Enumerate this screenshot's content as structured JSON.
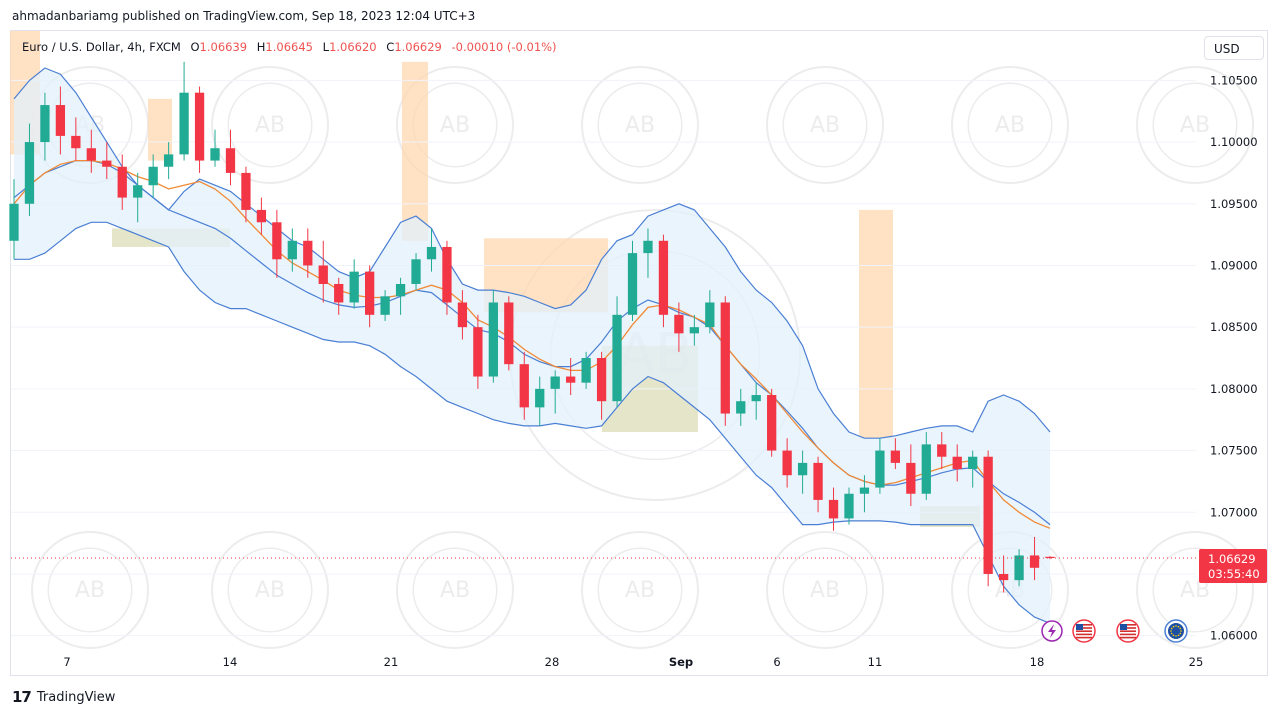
{
  "header": {
    "text": "ahmadanbariamg published on TradingView.com, Sep 18, 2023 12:04 UTC+3"
  },
  "legend": {
    "symbol": "Euro / U.S. Dollar, 4h, FXCM",
    "o_label": "O",
    "o": "1.06639",
    "h_label": "H",
    "h": "1.06645",
    "l_label": "L",
    "l": "1.06620",
    "c_label": "C",
    "c": "1.06629",
    "change": "-0.00010 (-0.01%)"
  },
  "currency_button": "USD",
  "price_tag": {
    "price": "1.06629",
    "countdown": "03:55:40"
  },
  "footer": {
    "brand": "TradingView"
  },
  "colors": {
    "up": "#22ab94",
    "down": "#f23645",
    "band": "#4a7fd4",
    "band_fill": "#e3f0fb",
    "ma": "#f08a36",
    "tag": "#f23645",
    "zone_orange": "#ffd7b0",
    "zone_olive": "#dcdcb8"
  },
  "event_icons": [
    "lightning-icon",
    "us-flag-icon",
    "us-flag-icon",
    "eu-flag-icon"
  ],
  "chart_data": {
    "type": "candlestick",
    "title": "Euro / U.S. Dollar, 4h, FXCM",
    "y_ticks": [
      "1.10500",
      "1.10000",
      "1.09500",
      "1.09000",
      "1.08500",
      "1.08000",
      "1.07500",
      "1.07000",
      "1.06500",
      "1.06000"
    ],
    "ylim": [
      1.059,
      1.109
    ],
    "x_ticks": [
      "7",
      "14",
      "21",
      "28",
      "Sep",
      "6",
      "11",
      "18",
      "25"
    ],
    "last_price": 1.06629,
    "indicators": [
      "Bollinger Bands (upper, basis, lower)",
      "Moving average"
    ],
    "ohlc": [
      [
        1.092,
        1.097,
        1.0905,
        1.095
      ],
      [
        1.095,
        1.1015,
        1.094,
        1.1
      ],
      [
        1.1,
        1.104,
        1.0985,
        1.103
      ],
      [
        1.103,
        1.1045,
        1.099,
        1.1005
      ],
      [
        1.1005,
        1.102,
        1.0985,
        1.0995
      ],
      [
        1.0995,
        1.101,
        1.0975,
        1.0985
      ],
      [
        1.0985,
        1.1,
        1.097,
        1.098
      ],
      [
        1.098,
        1.099,
        1.0945,
        1.0955
      ],
      [
        1.0955,
        1.0975,
        1.0935,
        1.0965
      ],
      [
        1.0965,
        1.099,
        1.0955,
        1.098
      ],
      [
        1.098,
        1.1,
        1.097,
        1.099
      ],
      [
        1.099,
        1.1065,
        1.0985,
        1.104
      ],
      [
        1.104,
        1.1045,
        1.0975,
        1.0985
      ],
      [
        1.0985,
        1.101,
        1.098,
        1.0995
      ],
      [
        1.0995,
        1.101,
        1.0965,
        1.0975
      ],
      [
        1.0975,
        1.098,
        1.0935,
        1.0945
      ],
      [
        1.0945,
        1.0955,
        1.0925,
        1.0935
      ],
      [
        1.0935,
        1.0945,
        1.089,
        1.0905
      ],
      [
        1.0905,
        1.093,
        1.0895,
        1.092
      ],
      [
        1.092,
        1.093,
        1.089,
        1.09
      ],
      [
        1.09,
        1.092,
        1.087,
        1.0885
      ],
      [
        1.0885,
        1.089,
        1.086,
        1.087
      ],
      [
        1.087,
        1.0905,
        1.0865,
        1.0895
      ],
      [
        1.0895,
        1.09,
        1.085,
        1.086
      ],
      [
        1.086,
        1.088,
        1.0855,
        1.0875
      ],
      [
        1.0875,
        1.089,
        1.086,
        1.0885
      ],
      [
        1.0885,
        1.091,
        1.088,
        1.0905
      ],
      [
        1.0905,
        1.093,
        1.0895,
        1.0915
      ],
      [
        1.0915,
        1.092,
        1.086,
        1.087
      ],
      [
        1.087,
        1.088,
        1.084,
        1.085
      ],
      [
        1.085,
        1.086,
        1.08,
        1.081
      ],
      [
        1.081,
        1.088,
        1.0805,
        1.087
      ],
      [
        1.087,
        1.0875,
        1.0815,
        1.082
      ],
      [
        1.082,
        1.083,
        1.0775,
        1.0785
      ],
      [
        1.0785,
        1.081,
        1.077,
        1.08
      ],
      [
        1.08,
        1.0815,
        1.078,
        1.081
      ],
      [
        1.081,
        1.0825,
        1.0795,
        1.0805
      ],
      [
        1.0805,
        1.083,
        1.08,
        1.0825
      ],
      [
        1.0825,
        1.083,
        1.0775,
        1.079
      ],
      [
        1.079,
        1.0875,
        1.0785,
        1.086
      ],
      [
        1.086,
        1.092,
        1.0855,
        1.091
      ],
      [
        1.091,
        1.093,
        1.089,
        1.092
      ],
      [
        1.092,
        1.0925,
        1.085,
        1.086
      ],
      [
        1.086,
        1.087,
        1.083,
        1.0845
      ],
      [
        1.0845,
        1.086,
        1.0835,
        1.085
      ],
      [
        1.085,
        1.088,
        1.0845,
        1.087
      ],
      [
        1.087,
        1.0875,
        1.077,
        1.078
      ],
      [
        1.078,
        1.08,
        1.077,
        1.079
      ],
      [
        1.079,
        1.0805,
        1.0775,
        1.0795
      ],
      [
        1.0795,
        1.08,
        1.0745,
        1.075
      ],
      [
        1.075,
        1.076,
        1.072,
        1.073
      ],
      [
        1.073,
        1.075,
        1.0715,
        1.074
      ],
      [
        1.074,
        1.0745,
        1.07,
        1.071
      ],
      [
        1.071,
        1.072,
        1.0685,
        1.0695
      ],
      [
        1.0695,
        1.072,
        1.069,
        1.0715
      ],
      [
        1.0715,
        1.073,
        1.07,
        1.072
      ],
      [
        1.072,
        1.076,
        1.0715,
        1.075
      ],
      [
        1.075,
        1.076,
        1.0735,
        1.074
      ],
      [
        1.074,
        1.0755,
        1.0705,
        1.0715
      ],
      [
        1.0715,
        1.0765,
        1.071,
        1.0755
      ],
      [
        1.0755,
        1.0765,
        1.0735,
        1.0745
      ],
      [
        1.0745,
        1.0755,
        1.0725,
        1.0735
      ],
      [
        1.0735,
        1.075,
        1.072,
        1.0745
      ],
      [
        1.0745,
        1.075,
        1.064,
        1.065
      ],
      [
        1.065,
        1.0665,
        1.0635,
        1.0645
      ],
      [
        1.0645,
        1.067,
        1.064,
        1.0665
      ],
      [
        1.0665,
        1.068,
        1.0645,
        1.0655
      ],
      [
        1.06639,
        1.06645,
        1.0662,
        1.06629
      ]
    ],
    "bollinger_upper": [
      1.1035,
      1.105,
      1.106,
      1.1055,
      1.104,
      1.102,
      1.1,
      1.098,
      1.0965,
      1.0955,
      1.0945,
      1.096,
      1.097,
      1.0965,
      1.096,
      1.095,
      1.094,
      1.093,
      1.092,
      1.0915,
      1.0905,
      1.0895,
      1.089,
      1.0895,
      1.0915,
      1.0935,
      1.094,
      1.093,
      1.0905,
      1.0885,
      1.088,
      1.088,
      1.0878,
      1.0875,
      1.087,
      1.0865,
      1.0868,
      1.088,
      1.0905,
      1.092,
      1.0925,
      1.094,
      1.0945,
      1.095,
      1.0945,
      1.093,
      1.0915,
      1.0895,
      1.088,
      1.087,
      1.0855,
      1.0835,
      1.08,
      1.078,
      1.0765,
      1.076,
      1.076,
      1.0762,
      1.0765,
      1.0768,
      1.077,
      1.077,
      1.0765,
      1.079,
      1.0795,
      1.079,
      1.078,
      1.0765
    ],
    "bollinger_basis": [
      1.0955,
      1.0965,
      1.0975,
      1.098,
      1.0985,
      1.0985,
      1.0982,
      1.0975,
      1.0965,
      1.0955,
      1.0945,
      1.094,
      1.0935,
      1.093,
      1.0922,
      1.0912,
      1.0902,
      1.0892,
      1.0885,
      1.0878,
      1.0872,
      1.0868,
      1.0866,
      1.0867,
      1.087,
      1.0875,
      1.088,
      1.0878,
      1.0868,
      1.0858,
      1.0848,
      1.0845,
      1.0838,
      1.0828,
      1.0822,
      1.0818,
      1.0818,
      1.0824,
      1.0838,
      1.0855,
      1.0865,
      1.0872,
      1.0868,
      1.0862,
      1.0858,
      1.085,
      1.0835,
      1.082,
      1.0805,
      1.0795,
      1.0782,
      1.0768,
      1.0752,
      1.074,
      1.073,
      1.0725,
      1.0722,
      1.0722,
      1.0725,
      1.0728,
      1.0732,
      1.0735,
      1.0736,
      1.0725,
      1.0715,
      1.0708,
      1.07,
      1.069
    ],
    "bollinger_lower": [
      1.0905,
      1.0905,
      1.091,
      1.092,
      1.093,
      1.0935,
      1.0935,
      1.093,
      1.0925,
      1.092,
      1.0915,
      1.0895,
      1.088,
      1.087,
      1.0865,
      1.0865,
      1.086,
      1.0855,
      1.085,
      1.0845,
      1.084,
      1.0838,
      1.0838,
      1.0835,
      1.0828,
      1.0818,
      1.081,
      1.08,
      1.079,
      1.0785,
      1.078,
      1.0775,
      1.0772,
      1.077,
      1.077,
      1.0772,
      1.077,
      1.0768,
      1.077,
      1.0785,
      1.08,
      1.081,
      1.0805,
      1.0795,
      1.0785,
      1.0775,
      1.076,
      1.0745,
      1.073,
      1.072,
      1.0705,
      1.069,
      1.069,
      1.0692,
      1.0693,
      1.0693,
      1.0693,
      1.0692,
      1.069,
      1.069,
      1.069,
      1.069,
      1.069,
      1.0665,
      1.064,
      1.0625,
      1.0615,
      1.061
    ],
    "ma": [
      1.095,
      1.0965,
      1.0975,
      1.0982,
      1.0985,
      1.0985,
      1.0983,
      1.0978,
      1.0972,
      1.0968,
      1.0962,
      1.0965,
      1.0968,
      1.0962,
      1.0952,
      1.0938,
      1.0925,
      1.0912,
      1.0902,
      1.0895,
      1.0888,
      1.088,
      1.0876,
      1.0874,
      1.0874,
      1.0876,
      1.088,
      1.0884,
      1.088,
      1.087,
      1.0856,
      1.085,
      1.0842,
      1.0832,
      1.0824,
      1.0818,
      1.0815,
      1.0815,
      1.0822,
      1.0835,
      1.0852,
      1.0866,
      1.0868,
      1.0864,
      1.0858,
      1.0852,
      1.0835,
      1.082,
      1.0808,
      1.0795,
      1.078,
      1.0765,
      1.0752,
      1.074,
      1.073,
      1.0725,
      1.0722,
      1.0724,
      1.0728,
      1.0732,
      1.0736,
      1.074,
      1.0742,
      1.0725,
      1.071,
      1.07,
      1.0692,
      1.0687
    ]
  }
}
